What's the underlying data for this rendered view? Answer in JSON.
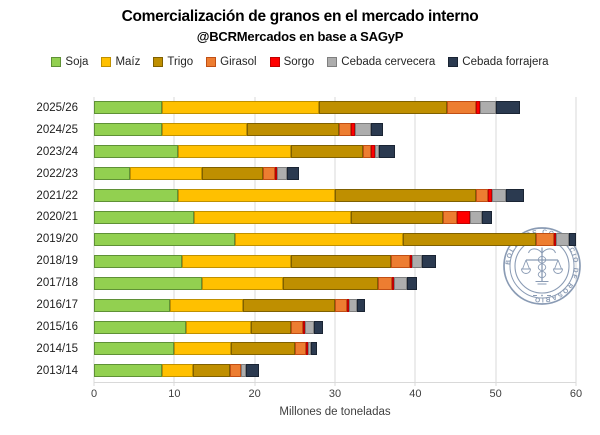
{
  "header": {
    "title": "Comercialización de granos en el mercado interno",
    "subtitle": "@BCRMercados en base a SAGyP"
  },
  "watermark": {
    "text": "BOLSA DE COMERCIO DE ROSARIO",
    "color": "#8496B0"
  },
  "chart_data": {
    "type": "bar",
    "orientation": "horizontal",
    "stacked": true,
    "title": "Comercialización de granos en el mercado interno",
    "subtitle": "@BCRMercados en base a SAGyP",
    "xlabel": "Millones de toneladas",
    "ylabel": "",
    "xlim": [
      0,
      60
    ],
    "xticks": [
      0,
      10,
      20,
      30,
      40,
      50,
      60
    ],
    "grid": true,
    "legend_position": "top",
    "categories": [
      "2025/26",
      "2024/25",
      "2023/24",
      "2022/23",
      "2021/22",
      "2020/21",
      "2019/20",
      "2018/19",
      "2017/18",
      "2016/17",
      "2015/16",
      "2014/15",
      "2013/14"
    ],
    "series": [
      {
        "name": "Soja",
        "color": "#92D050",
        "border": "#5F9136",
        "values": [
          8.5,
          8.5,
          10.5,
          4.5,
          10.5,
          12.5,
          17.5,
          11.0,
          13.5,
          9.5,
          11.5,
          10.0,
          8.5
        ]
      },
      {
        "name": "Maíz",
        "color": "#FFC000",
        "border": "#BF9000",
        "values": [
          19.5,
          10.5,
          14.0,
          9.0,
          19.5,
          19.5,
          21.0,
          13.5,
          10.0,
          9.0,
          8.0,
          7.0,
          3.8
        ]
      },
      {
        "name": "Trigo",
        "color": "#BF8F00",
        "border": "#7F6000",
        "values": [
          16.0,
          11.5,
          9.0,
          7.5,
          17.5,
          11.5,
          16.5,
          12.5,
          11.8,
          11.5,
          5.0,
          8.0,
          4.6
        ]
      },
      {
        "name": "Girasol",
        "color": "#ED7D31",
        "border": "#C04F15",
        "values": [
          3.5,
          1.5,
          1.0,
          1.5,
          1.5,
          1.7,
          2.3,
          2.3,
          1.8,
          1.5,
          1.5,
          1.4,
          1.4
        ]
      },
      {
        "name": "Sorgo",
        "color": "#FF0000",
        "border": "#C00000",
        "values": [
          0.5,
          0.5,
          0.5,
          0.3,
          0.5,
          1.6,
          0.2,
          0.2,
          0.2,
          0.2,
          0.2,
          0.3,
          0.0
        ]
      },
      {
        "name": "Cebada cervecera",
        "color": "#ADADAD",
        "border": "#7F7F7F",
        "values": [
          2.0,
          2.0,
          0.5,
          1.2,
          1.8,
          1.5,
          1.6,
          1.3,
          1.6,
          1.0,
          1.1,
          0.3,
          0.6
        ]
      },
      {
        "name": "Cebada forrajera",
        "color": "#2B3A50",
        "border": "#1A2433",
        "values": [
          3.0,
          1.5,
          2.0,
          1.5,
          2.2,
          1.2,
          0.9,
          1.7,
          1.3,
          1.0,
          1.2,
          0.8,
          1.6
        ]
      }
    ]
  }
}
